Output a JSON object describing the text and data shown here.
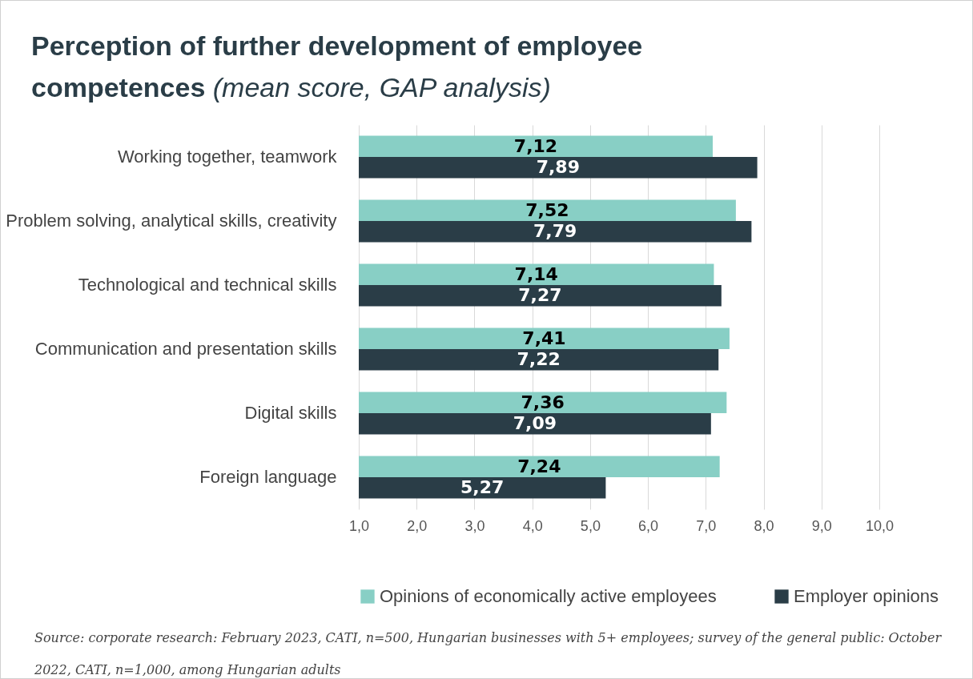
{
  "chart_data": {
    "type": "bar",
    "orientation": "horizontal",
    "title": "Perception of further development of employee competences",
    "subtitle": "(mean score, GAP analysis)",
    "categories": [
      "Working together, teamwork",
      "Problem solving, analytical skills, creativity",
      "Technological and technical skills",
      "Communication and presentation skills",
      "Digital skills",
      "Foreign language"
    ],
    "series": [
      {
        "name": "Opinions of economically active employees",
        "color": "#88cfc5",
        "values": [
          7.12,
          7.52,
          7.14,
          7.41,
          7.36,
          7.24
        ],
        "value_labels": [
          "7,12",
          "7,52",
          "7,14",
          "7,41",
          "7,36",
          "7,24"
        ]
      },
      {
        "name": "Employer opinions",
        "color": "#2a3d47",
        "values": [
          7.89,
          7.79,
          7.27,
          7.22,
          7.09,
          5.27
        ],
        "value_labels": [
          "7,89",
          "7,79",
          "7,27",
          "7,22",
          "7,09",
          "5,27"
        ]
      }
    ],
    "xlim": [
      1,
      10
    ],
    "xticks": [
      {
        "value": 1,
        "label": "1,0"
      },
      {
        "value": 2,
        "label": "2,0"
      },
      {
        "value": 3,
        "label": "3,0"
      },
      {
        "value": 4,
        "label": "4,0"
      },
      {
        "value": 5,
        "label": "5,0"
      },
      {
        "value": 6,
        "label": "6,0"
      },
      {
        "value": 7,
        "label": "7,0"
      },
      {
        "value": 8,
        "label": "8,0"
      },
      {
        "value": 9,
        "label": "9,0"
      },
      {
        "value": 10,
        "label": "10,0"
      }
    ],
    "grid": "x",
    "legend": "bottom",
    "annotations": [
      "Source: corporate research: February 2023, CATI, n=500, Hungarian businesses with 5+ employees; survey of the general public: October 2022, CATI, n=1,000, among Hungarian adults"
    ]
  }
}
